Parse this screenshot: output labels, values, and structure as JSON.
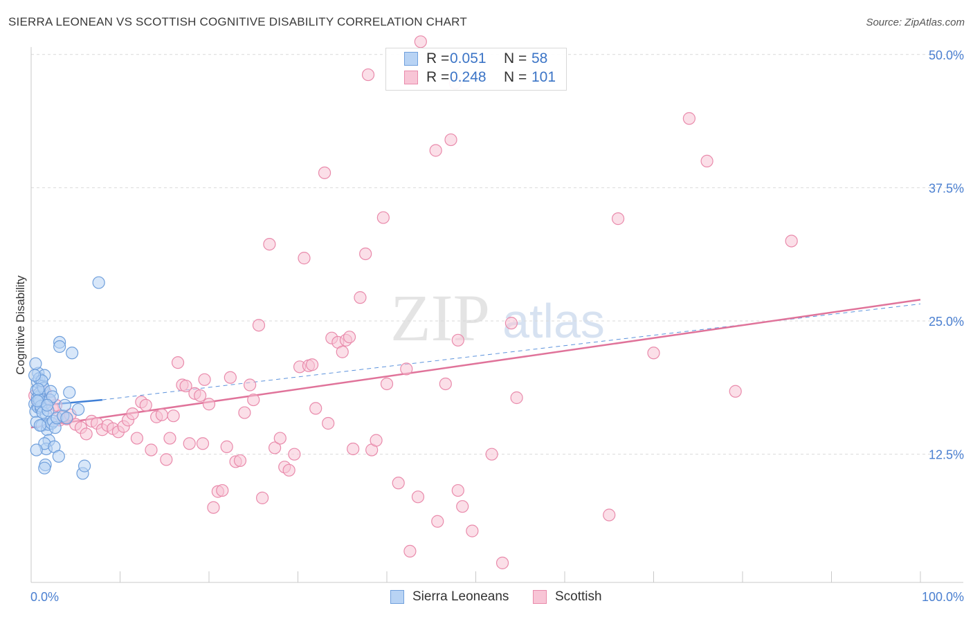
{
  "header": {
    "title": "SIERRA LEONEAN VS SCOTTISH COGNITIVE DISABILITY CORRELATION CHART",
    "source": "Source: ZipAtlas.com"
  },
  "legend": {
    "blue": {
      "r_label": "R =",
      "r_value": "0.051",
      "n_label": "N =",
      "n_value": "58"
    },
    "pink": {
      "r_label": "R =",
      "r_value": "0.248",
      "n_label": "N =",
      "n_value": "101"
    }
  },
  "bottom_legend": {
    "blue_label": "Sierra Leoneans",
    "pink_label": "Scottish"
  },
  "watermark": {
    "zip": "ZIP",
    "atlas": "atlas"
  },
  "colors": {
    "blue_fill": "#b8d3f4",
    "blue_stroke": "#6f9fdc",
    "blue_line": "#3f7fd6",
    "pink_fill": "#f8c5d6",
    "pink_stroke": "#e98aab",
    "pink_line": "#e0739a",
    "tick_label": "#4a7fd0",
    "grid": "#d9d9d9"
  },
  "chart_data": {
    "type": "scatter",
    "title": "SIERRA LEONEAN VS SCOTTISH COGNITIVE DISABILITY CORRELATION CHART",
    "xlabel": "",
    "ylabel": "Cognitive Disability",
    "xlim": [
      0,
      100
    ],
    "ylim": [
      0,
      50
    ],
    "x_tick_labels": [
      "0.0%",
      "100.0%"
    ],
    "y_ticks": [
      12.5,
      25.0,
      37.5,
      50.0
    ],
    "y_tick_labels": [
      "12.5%",
      "25.0%",
      "37.5%",
      "50.0%"
    ],
    "grid": true,
    "series": [
      {
        "name": "Sierra Leoneans",
        "r": 0.051,
        "n": 58,
        "trend": {
          "x0": 0.0,
          "y0": 17.0,
          "x1": 8.0,
          "y1": 17.6
        },
        "trend_dashed": {
          "x0": 8.0,
          "y0": 17.6,
          "x1": 100.0,
          "y1": 26.6
        },
        "points": [
          [
            0.4,
            17.2
          ],
          [
            0.5,
            16.5
          ],
          [
            0.6,
            18.5
          ],
          [
            0.7,
            19.3
          ],
          [
            0.8,
            20.1
          ],
          [
            0.9,
            19.6
          ],
          [
            1.0,
            18.0
          ],
          [
            0.5,
            21.0
          ],
          [
            0.6,
            15.5
          ],
          [
            0.7,
            17.8
          ],
          [
            0.8,
            16.9
          ],
          [
            0.9,
            18.2
          ],
          [
            1.0,
            17.4
          ],
          [
            1.1,
            16.8
          ],
          [
            1.2,
            15.2
          ],
          [
            1.3,
            18.9
          ],
          [
            1.4,
            18.7
          ],
          [
            1.5,
            19.9
          ],
          [
            1.6,
            17.3
          ],
          [
            1.7,
            16.2
          ],
          [
            1.8,
            14.8
          ],
          [
            1.9,
            15.3
          ],
          [
            2.0,
            13.8
          ],
          [
            1.7,
            13.0
          ],
          [
            1.5,
            13.5
          ],
          [
            1.6,
            11.5
          ],
          [
            1.5,
            11.2
          ],
          [
            2.2,
            18.4
          ],
          [
            2.3,
            15.4
          ],
          [
            2.5,
            15.6
          ],
          [
            2.6,
            13.2
          ],
          [
            2.7,
            15.0
          ],
          [
            2.9,
            15.9
          ],
          [
            3.1,
            12.3
          ],
          [
            3.2,
            23.0
          ],
          [
            3.2,
            22.6
          ],
          [
            3.6,
            16.1
          ],
          [
            3.8,
            17.1
          ],
          [
            4.0,
            15.9
          ],
          [
            4.3,
            18.3
          ],
          [
            4.6,
            22.0
          ],
          [
            5.3,
            16.7
          ],
          [
            5.8,
            10.7
          ],
          [
            6.0,
            11.4
          ],
          [
            7.6,
            28.6
          ],
          [
            0.6,
            12.9
          ],
          [
            0.9,
            17.6
          ],
          [
            1.1,
            17.0
          ],
          [
            1.2,
            19.4
          ],
          [
            0.8,
            18.6
          ],
          [
            1.3,
            16.4
          ],
          [
            2.1,
            17.6
          ],
          [
            1.9,
            16.6
          ],
          [
            0.4,
            19.9
          ],
          [
            2.4,
            17.9
          ],
          [
            1.0,
            15.2
          ],
          [
            0.7,
            17.5
          ],
          [
            1.8,
            17.1
          ]
        ]
      },
      {
        "name": "Scottish",
        "r": 0.248,
        "n": 101,
        "trend": {
          "x0": 0.0,
          "y0": 15.0,
          "x1": 100.0,
          "y1": 27.0
        },
        "points": [
          [
            0.4,
            18.0
          ],
          [
            0.8,
            17.3
          ],
          [
            1.2,
            17.0
          ],
          [
            1.6,
            18.3
          ],
          [
            2.0,
            17.6
          ],
          [
            2.4,
            16.8
          ],
          [
            2.8,
            17.1
          ],
          [
            3.2,
            15.7
          ],
          [
            3.6,
            16.0
          ],
          [
            4.0,
            15.8
          ],
          [
            4.4,
            16.2
          ],
          [
            5.0,
            15.3
          ],
          [
            5.6,
            15.0
          ],
          [
            6.2,
            14.4
          ],
          [
            6.8,
            15.6
          ],
          [
            7.4,
            15.4
          ],
          [
            8.0,
            14.8
          ],
          [
            8.6,
            15.2
          ],
          [
            9.2,
            14.9
          ],
          [
            9.8,
            14.6
          ],
          [
            10.4,
            15.1
          ],
          [
            10.9,
            15.7
          ],
          [
            11.4,
            16.3
          ],
          [
            11.9,
            14.0
          ],
          [
            12.4,
            17.4
          ],
          [
            12.9,
            17.1
          ],
          [
            13.5,
            12.9
          ],
          [
            14.1,
            16.0
          ],
          [
            14.7,
            16.2
          ],
          [
            15.2,
            12.0
          ],
          [
            15.6,
            14.0
          ],
          [
            16.0,
            16.1
          ],
          [
            16.5,
            21.1
          ],
          [
            17.0,
            19.0
          ],
          [
            17.4,
            18.9
          ],
          [
            17.8,
            13.5
          ],
          [
            18.4,
            18.2
          ],
          [
            19.0,
            18.0
          ],
          [
            19.3,
            13.5
          ],
          [
            19.5,
            19.5
          ],
          [
            20.0,
            17.2
          ],
          [
            20.5,
            7.5
          ],
          [
            21.0,
            9.0
          ],
          [
            21.5,
            9.1
          ],
          [
            22.0,
            13.2
          ],
          [
            22.4,
            19.7
          ],
          [
            23.0,
            11.8
          ],
          [
            23.5,
            11.9
          ],
          [
            24.0,
            16.4
          ],
          [
            24.6,
            19.0
          ],
          [
            25.0,
            17.6
          ],
          [
            25.6,
            24.6
          ],
          [
            26.0,
            8.4
          ],
          [
            26.8,
            32.2
          ],
          [
            27.4,
            13.1
          ],
          [
            28.0,
            14.0
          ],
          [
            28.5,
            11.3
          ],
          [
            29.0,
            11.0
          ],
          [
            29.6,
            12.5
          ],
          [
            30.2,
            20.7
          ],
          [
            30.7,
            30.9
          ],
          [
            31.2,
            20.8
          ],
          [
            31.6,
            20.9
          ],
          [
            32.0,
            16.8
          ],
          [
            33.0,
            38.9
          ],
          [
            33.4,
            15.4
          ],
          [
            33.8,
            23.4
          ],
          [
            34.5,
            23.0
          ],
          [
            35.0,
            22.1
          ],
          [
            35.4,
            23.2
          ],
          [
            35.8,
            23.5
          ],
          [
            36.2,
            13.0
          ],
          [
            37.0,
            27.2
          ],
          [
            37.6,
            31.3
          ],
          [
            38.3,
            12.9
          ],
          [
            38.8,
            13.8
          ],
          [
            39.6,
            34.7
          ],
          [
            40.0,
            19.1
          ],
          [
            41.3,
            9.8
          ],
          [
            42.2,
            20.5
          ],
          [
            42.6,
            3.4
          ],
          [
            43.5,
            8.5
          ],
          [
            45.5,
            41.0
          ],
          [
            45.7,
            6.2
          ],
          [
            46.6,
            19.1
          ],
          [
            47.2,
            42.0
          ],
          [
            48.0,
            23.2
          ],
          [
            48.0,
            9.1
          ],
          [
            48.5,
            7.6
          ],
          [
            49.6,
            5.3
          ],
          [
            51.8,
            12.5
          ],
          [
            53.0,
            2.3
          ],
          [
            54.0,
            24.8
          ],
          [
            54.6,
            17.8
          ],
          [
            65.0,
            6.8
          ],
          [
            66.0,
            34.6
          ],
          [
            79.2,
            18.4
          ],
          [
            85.5,
            32.5
          ],
          [
            74.0,
            44.0
          ],
          [
            76.0,
            40.0
          ],
          [
            70.0,
            22.0
          ]
        ],
        "outer_points": [
          [
            37.9,
            48.1
          ],
          [
            43.8,
            51.2
          ],
          [
            47.7,
            47.3
          ]
        ]
      }
    ]
  }
}
